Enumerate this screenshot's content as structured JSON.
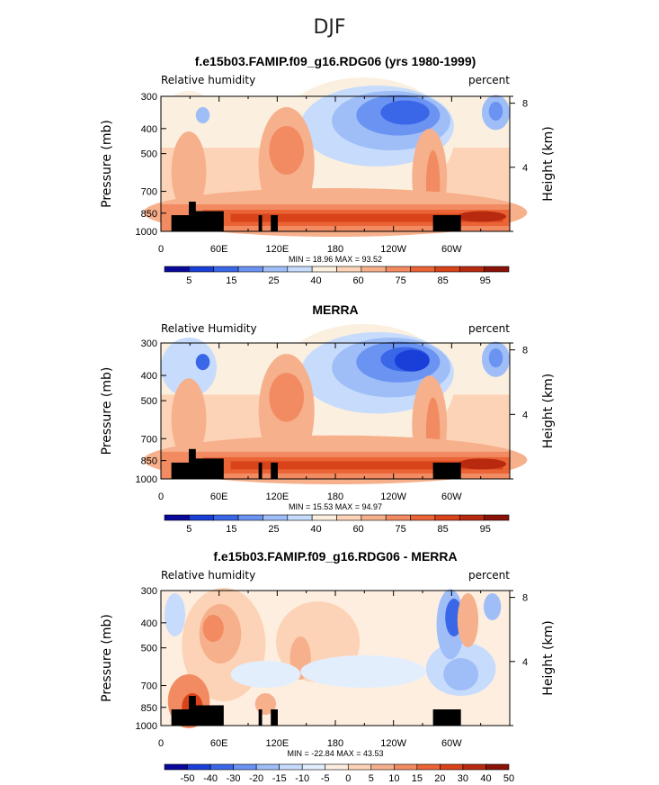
{
  "figure_title": "DJF",
  "colors": {
    "rh_scale": [
      "#08089a",
      "#1a3ed8",
      "#3a66e8",
      "#6a93f2",
      "#9fbef8",
      "#c7dcfc",
      "#fbf0df",
      "#fcd3b6",
      "#f7b08c",
      "#f28b62",
      "#ea6436",
      "#d8431a",
      "#b82a10",
      "#8a1208"
    ],
    "diff_scale": [
      "#08089a",
      "#1a3ed8",
      "#3a66e8",
      "#6a93f2",
      "#9fbef8",
      "#c7dcfc",
      "#e3eefd",
      "#fdeee0",
      "#fcd3b6",
      "#f7b08c",
      "#f28b62",
      "#ea6436",
      "#d8431a",
      "#b82a10",
      "#8a1208"
    ],
    "topography": "#000000"
  },
  "chart_data": [
    {
      "type": "heatmap",
      "title": "f.e15b03.FAMIP.f09_g16.RDG06 (yrs 1980-1999)",
      "left_label": "Relative humidity",
      "right_label": "percent",
      "ylabel": "Pressure (mb)",
      "y2label": "Height (km)",
      "x_ticks": [
        "0",
        "60E",
        "120E",
        "180",
        "120W",
        "60W"
      ],
      "y_ticks": [
        "300",
        "400",
        "500",
        "700",
        "850",
        "1000"
      ],
      "y2_ticks": [
        "8",
        "4"
      ],
      "stats": "MIN =   18.96   MAX =   93.52",
      "colorbar_labels": [
        "5",
        "15",
        "25",
        "40",
        "60",
        "75",
        "85",
        "95"
      ]
    },
    {
      "type": "heatmap",
      "title": "MERRA",
      "left_label": "Relative Humidity",
      "right_label": "percent",
      "ylabel": "Pressure (mb)",
      "y2label": "Height (km)",
      "x_ticks": [
        "0",
        "60E",
        "120E",
        "180",
        "120W",
        "60W"
      ],
      "y_ticks": [
        "300",
        "400",
        "500",
        "700",
        "850",
        "1000"
      ],
      "y2_ticks": [
        "8",
        "4"
      ],
      "stats": "MIN =   15.53   MAX =   94.97",
      "colorbar_labels": [
        "5",
        "15",
        "25",
        "40",
        "60",
        "75",
        "85",
        "95"
      ]
    },
    {
      "type": "heatmap",
      "title": "f.e15b03.FAMIP.f09_g16.RDG06 - MERRA",
      "left_label": "Relative humidity",
      "right_label": "percent",
      "ylabel": "Pressure (mb)",
      "y2label": "Height (km)",
      "x_ticks": [
        "0",
        "60E",
        "120E",
        "180",
        "120W",
        "60W"
      ],
      "y_ticks": [
        "300",
        "400",
        "500",
        "700",
        "850",
        "1000"
      ],
      "y2_ticks": [
        "8",
        "4"
      ],
      "stats": "MIN = -22.84   MAX =   43.53",
      "colorbar_labels": [
        "-50",
        "-40",
        "-30",
        "-20",
        "-15",
        "-10",
        "-5",
        "0",
        "5",
        "10",
        "15",
        "20",
        "30",
        "40",
        "50"
      ]
    }
  ]
}
